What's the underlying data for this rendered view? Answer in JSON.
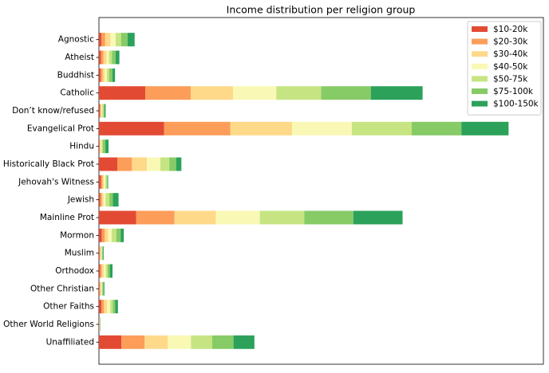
{
  "chart_data": {
    "type": "stacked_barh",
    "title": "Income distribution per religion group",
    "categories": [
      "Agnostic",
      "Atheist",
      "Buddhist",
      "Catholic",
      "Don’t know/refused",
      "Evangelical Prot",
      "Hindu",
      "Historically Black Prot",
      "Jehovah's Witness",
      "Jewish",
      "Mainline Prot",
      "Mormon",
      "Muslim",
      "Orthodox",
      "Other Christian",
      "Other Faiths",
      "Other World Religions",
      "Unaffiliated"
    ],
    "series": [
      {
        "name": "$10-20k",
        "color": "#e34a33",
        "values": [
          0.012,
          0.01,
          0.008,
          0.222,
          0.005,
          0.312,
          0.003,
          0.088,
          0.01,
          0.007,
          0.178,
          0.014,
          0.003,
          0.006,
          0.003,
          0.012,
          0.001,
          0.108
        ]
      },
      {
        "name": "$20-30k",
        "color": "#fc9d59",
        "values": [
          0.018,
          0.011,
          0.009,
          0.218,
          0.004,
          0.317,
          0.002,
          0.07,
          0.007,
          0.007,
          0.184,
          0.014,
          0.003,
          0.007,
          0.003,
          0.012,
          0.001,
          0.111
        ]
      },
      {
        "name": "$30-40k",
        "color": "#fed98a",
        "values": [
          0.025,
          0.016,
          0.01,
          0.203,
          0.003,
          0.297,
          0.003,
          0.072,
          0.007,
          0.008,
          0.198,
          0.015,
          0.003,
          0.01,
          0.004,
          0.014,
          0.001,
          0.111
        ]
      },
      {
        "name": "$40-50k",
        "color": "#f9f8b5",
        "values": [
          0.025,
          0.011,
          0.011,
          0.207,
          0.003,
          0.286,
          0.004,
          0.064,
          0.007,
          0.01,
          0.211,
          0.018,
          0.003,
          0.01,
          0.004,
          0.016,
          0.001,
          0.111
        ]
      },
      {
        "name": "$50-75k",
        "color": "#c6e582",
        "values": [
          0.026,
          0.014,
          0.011,
          0.215,
          0.007,
          0.287,
          0.007,
          0.043,
          0.006,
          0.018,
          0.213,
          0.022,
          0.004,
          0.009,
          0.003,
          0.012,
          0.001,
          0.102
        ]
      },
      {
        "name": "$75-100k",
        "color": "#86cb66",
        "values": [
          0.031,
          0.018,
          0.016,
          0.238,
          0.005,
          0.238,
          0.012,
          0.033,
          0.004,
          0.017,
          0.235,
          0.021,
          0.004,
          0.01,
          0.005,
          0.012,
          0.001,
          0.102
        ]
      },
      {
        "name": "$100-150k",
        "color": "#2ba15a",
        "values": [
          0.034,
          0.018,
          0.012,
          0.248,
          0.005,
          0.226,
          0.015,
          0.025,
          0.003,
          0.027,
          0.236,
          0.015,
          0.003,
          0.013,
          0.004,
          0.013,
          0.001,
          0.1
        ]
      }
    ],
    "xlim": [
      0,
      2.13
    ],
    "legend": "upper right"
  }
}
